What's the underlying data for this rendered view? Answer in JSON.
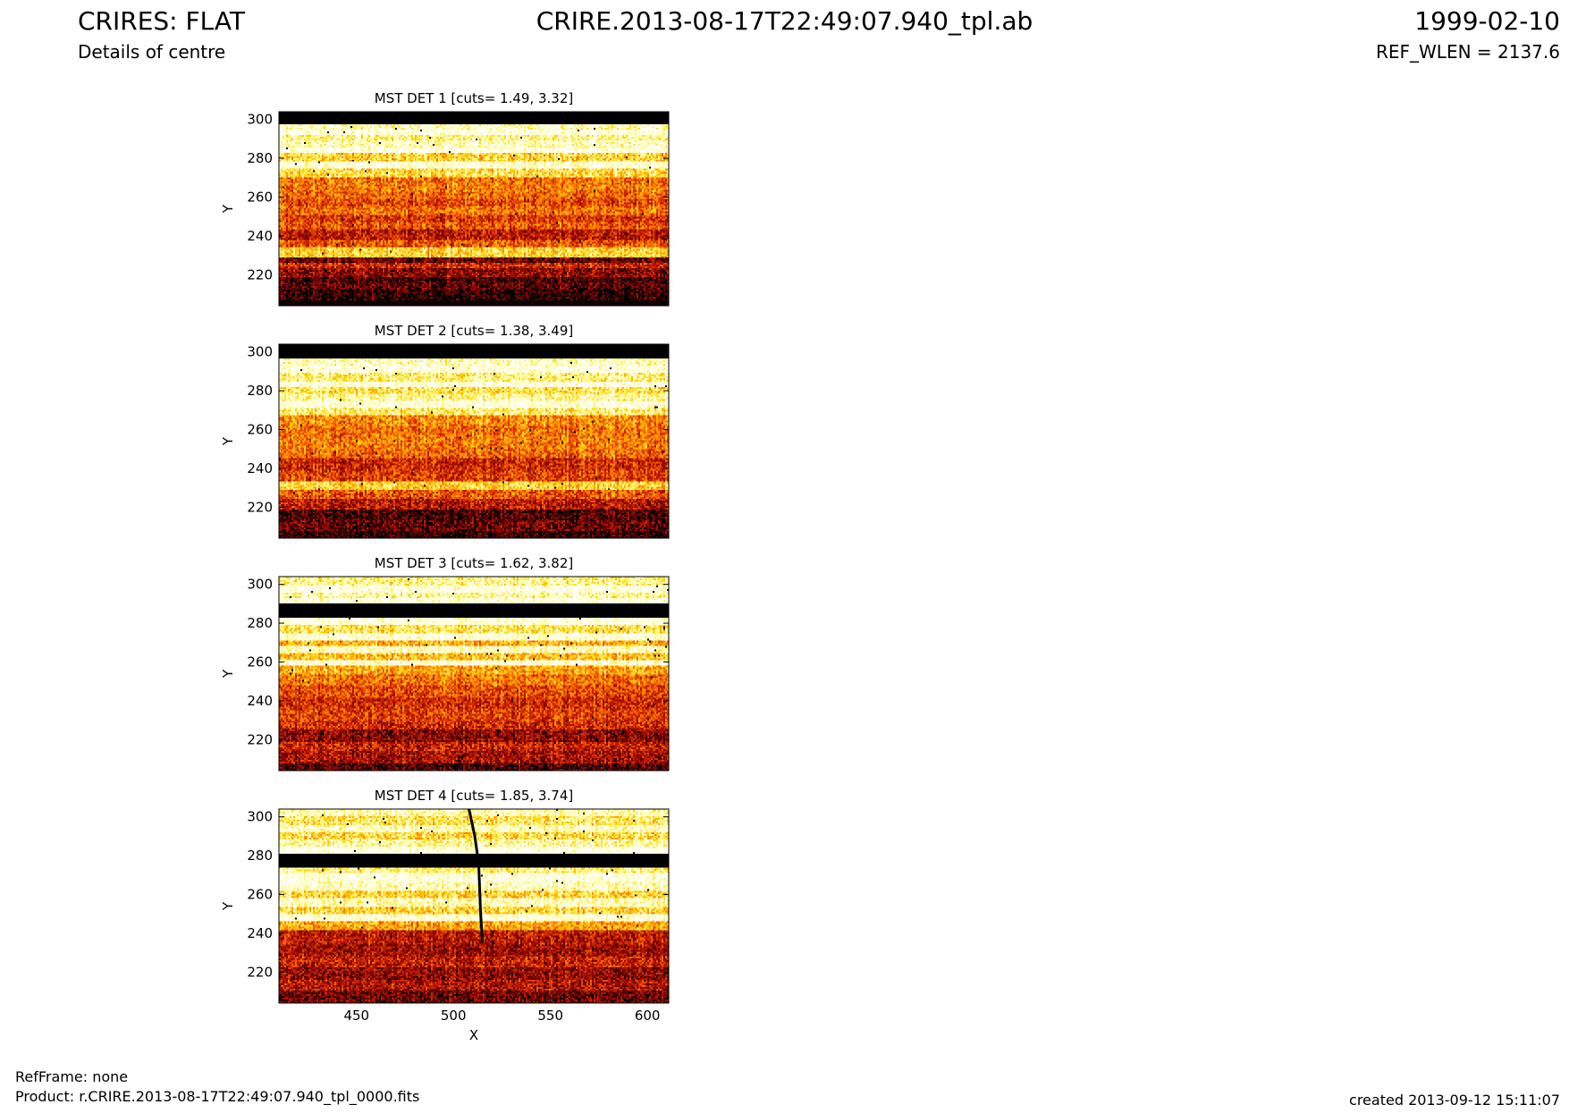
{
  "header": {
    "title": "CRIRES: FLAT",
    "subtitle": "Details of centre",
    "product": "CRIRE.2013-08-17T22:49:07.940_tpl.ab",
    "date": "1999-02-10",
    "ref_wlen": "REF_WLEN = 2137.6"
  },
  "footer": {
    "refframe": "RefFrame: none",
    "product": "Product: r.CRIRE.2013-08-17T22:49:07.940_tpl_0000.fits",
    "created": "created 2013-09-12 15:11:07"
  },
  "colors": {
    "colormap": [
      "#000000",
      "#7a0000",
      "#c81e00",
      "#ff6e00",
      "#ffd200",
      "#ffffa0",
      "#ffffff"
    ]
  },
  "chart_data": [
    {
      "type": "heatmap",
      "title": "MST DET 1 [cuts= 1.49, 3.32]",
      "cuts": [
        1.49,
        3.32
      ],
      "xlabel": "",
      "ylabel": "Y",
      "xlim": [
        410,
        611
      ],
      "ylim": [
        204,
        304
      ],
      "xticks": [],
      "yticks": [
        220,
        240,
        260,
        280,
        300
      ],
      "ytick_labels": [
        "220",
        "240",
        "260",
        "280",
        "300"
      ],
      "row_levels": [
        {
          "y0": 204,
          "y1": 207,
          "level": 0.02
        },
        {
          "y0": 207,
          "y1": 212,
          "level": 0.05
        },
        {
          "y0": 212,
          "y1": 216,
          "level": 0.12
        },
        {
          "y0": 216,
          "y1": 219,
          "level": 0.08
        },
        {
          "y0": 219,
          "y1": 223,
          "level": 0.22
        },
        {
          "y0": 223,
          "y1": 226,
          "level": 0.35
        },
        {
          "y0": 226,
          "y1": 229,
          "level": 0.15
        },
        {
          "y0": 229,
          "y1": 234,
          "level": 0.7
        },
        {
          "y0": 234,
          "y1": 238,
          "level": 0.45
        },
        {
          "y0": 238,
          "y1": 243,
          "level": 0.3
        },
        {
          "y0": 243,
          "y1": 247,
          "level": 0.45
        },
        {
          "y0": 247,
          "y1": 251,
          "level": 0.38
        },
        {
          "y0": 251,
          "y1": 255,
          "level": 0.5
        },
        {
          "y0": 255,
          "y1": 259,
          "level": 0.42
        },
        {
          "y0": 259,
          "y1": 263,
          "level": 0.48
        },
        {
          "y0": 263,
          "y1": 267,
          "level": 0.52
        },
        {
          "y0": 267,
          "y1": 270,
          "level": 0.5
        },
        {
          "y0": 270,
          "y1": 275,
          "level": 0.72
        },
        {
          "y0": 275,
          "y1": 278,
          "level": 0.95
        },
        {
          "y0": 278,
          "y1": 283,
          "level": 0.7
        },
        {
          "y0": 283,
          "y1": 286,
          "level": 0.98
        },
        {
          "y0": 286,
          "y1": 289,
          "level": 0.9
        },
        {
          "y0": 289,
          "y1": 292,
          "level": 0.82
        },
        {
          "y0": 292,
          "y1": 295,
          "level": 0.97
        },
        {
          "y0": 295,
          "y1": 298,
          "level": 0.9
        },
        {
          "y0": 298,
          "y1": 304,
          "level": 0.0
        }
      ]
    },
    {
      "type": "heatmap",
      "title": "MST DET 2 [cuts= 1.38, 3.49]",
      "cuts": [
        1.38,
        3.49
      ],
      "xlabel": "",
      "ylabel": "Y",
      "xlim": [
        410,
        611
      ],
      "ylim": [
        204,
        304
      ],
      "xticks": [],
      "yticks": [
        220,
        240,
        260,
        280,
        300
      ],
      "ytick_labels": [
        "220",
        "240",
        "260",
        "280",
        "300"
      ],
      "row_levels": [
        {
          "y0": 204,
          "y1": 208,
          "level": 0.05
        },
        {
          "y0": 208,
          "y1": 213,
          "level": 0.15
        },
        {
          "y0": 213,
          "y1": 219,
          "level": 0.1
        },
        {
          "y0": 219,
          "y1": 224,
          "level": 0.3
        },
        {
          "y0": 224,
          "y1": 229,
          "level": 0.45
        },
        {
          "y0": 229,
          "y1": 233,
          "level": 0.7
        },
        {
          "y0": 233,
          "y1": 239,
          "level": 0.4
        },
        {
          "y0": 239,
          "y1": 245,
          "level": 0.35
        },
        {
          "y0": 245,
          "y1": 250,
          "level": 0.48
        },
        {
          "y0": 250,
          "y1": 256,
          "level": 0.52
        },
        {
          "y0": 256,
          "y1": 262,
          "level": 0.5
        },
        {
          "y0": 262,
          "y1": 267,
          "level": 0.55
        },
        {
          "y0": 267,
          "y1": 271,
          "level": 0.78
        },
        {
          "y0": 271,
          "y1": 275,
          "level": 0.97
        },
        {
          "y0": 275,
          "y1": 278,
          "level": 0.85
        },
        {
          "y0": 278,
          "y1": 282,
          "level": 0.75
        },
        {
          "y0": 282,
          "y1": 285,
          "level": 0.97
        },
        {
          "y0": 285,
          "y1": 289,
          "level": 0.8
        },
        {
          "y0": 289,
          "y1": 293,
          "level": 0.97
        },
        {
          "y0": 293,
          "y1": 297,
          "level": 0.9
        },
        {
          "y0": 297,
          "y1": 304,
          "level": 0.0
        }
      ]
    },
    {
      "type": "heatmap",
      "title": "MST DET 3 [cuts= 1.62, 3.82]",
      "cuts": [
        1.62,
        3.82
      ],
      "xlabel": "",
      "ylabel": "Y",
      "xlim": [
        410,
        611
      ],
      "ylim": [
        204,
        304
      ],
      "xticks": [],
      "yticks": [
        220,
        240,
        260,
        280,
        300
      ],
      "ytick_labels": [
        "220",
        "240",
        "260",
        "280",
        "300"
      ],
      "row_levels": [
        {
          "y0": 204,
          "y1": 208,
          "level": 0.1
        },
        {
          "y0": 208,
          "y1": 214,
          "level": 0.25
        },
        {
          "y0": 214,
          "y1": 219,
          "level": 0.32
        },
        {
          "y0": 219,
          "y1": 225,
          "level": 0.2
        },
        {
          "y0": 225,
          "y1": 230,
          "level": 0.35
        },
        {
          "y0": 230,
          "y1": 236,
          "level": 0.4
        },
        {
          "y0": 236,
          "y1": 242,
          "level": 0.35
        },
        {
          "y0": 242,
          "y1": 248,
          "level": 0.42
        },
        {
          "y0": 248,
          "y1": 254,
          "level": 0.5
        },
        {
          "y0": 254,
          "y1": 258,
          "level": 0.6
        },
        {
          "y0": 258,
          "y1": 261,
          "level": 0.95
        },
        {
          "y0": 261,
          "y1": 265,
          "level": 0.65
        },
        {
          "y0": 265,
          "y1": 268,
          "level": 0.9
        },
        {
          "y0": 268,
          "y1": 271,
          "level": 0.62
        },
        {
          "y0": 271,
          "y1": 275,
          "level": 0.95
        },
        {
          "y0": 275,
          "y1": 279,
          "level": 0.75
        },
        {
          "y0": 279,
          "y1": 283,
          "level": 0.97
        },
        {
          "y0": 283,
          "y1": 290,
          "level": 0.0
        },
        {
          "y0": 290,
          "y1": 293,
          "level": 0.97
        },
        {
          "y0": 293,
          "y1": 296,
          "level": 0.85
        },
        {
          "y0": 296,
          "y1": 299,
          "level": 0.97
        },
        {
          "y0": 299,
          "y1": 304,
          "level": 0.82
        }
      ]
    },
    {
      "type": "heatmap",
      "title": "MST DET 4 [cuts= 1.85, 3.74]",
      "cuts": [
        1.85,
        3.74
      ],
      "xlabel": "X",
      "ylabel": "Y",
      "xlim": [
        410,
        611
      ],
      "ylim": [
        204,
        304
      ],
      "xticks": [
        450,
        500,
        550,
        600
      ],
      "xtick_labels": [
        "450",
        "500",
        "550",
        "600"
      ],
      "yticks": [
        220,
        240,
        260,
        280,
        300
      ],
      "ytick_labels": [
        "220",
        "240",
        "260",
        "280",
        "300"
      ],
      "row_levels": [
        {
          "y0": 204,
          "y1": 210,
          "level": 0.15
        },
        {
          "y0": 210,
          "y1": 216,
          "level": 0.28
        },
        {
          "y0": 216,
          "y1": 222,
          "level": 0.22
        },
        {
          "y0": 222,
          "y1": 228,
          "level": 0.32
        },
        {
          "y0": 228,
          "y1": 234,
          "level": 0.25
        },
        {
          "y0": 234,
          "y1": 242,
          "level": 0.3
        },
        {
          "y0": 242,
          "y1": 246,
          "level": 0.6
        },
        {
          "y0": 246,
          "y1": 250,
          "level": 0.95
        },
        {
          "y0": 250,
          "y1": 254,
          "level": 0.7
        },
        {
          "y0": 254,
          "y1": 258,
          "level": 0.88
        },
        {
          "y0": 258,
          "y1": 262,
          "level": 0.7
        },
        {
          "y0": 262,
          "y1": 266,
          "level": 0.9
        },
        {
          "y0": 266,
          "y1": 271,
          "level": 0.97
        },
        {
          "y0": 271,
          "y1": 274,
          "level": 0.8
        },
        {
          "y0": 274,
          "y1": 281,
          "level": 0.0
        },
        {
          "y0": 281,
          "y1": 285,
          "level": 0.98
        },
        {
          "y0": 285,
          "y1": 288,
          "level": 0.85
        },
        {
          "y0": 288,
          "y1": 292,
          "level": 0.72
        },
        {
          "y0": 292,
          "y1": 296,
          "level": 0.9
        },
        {
          "y0": 296,
          "y1": 300,
          "level": 0.75
        },
        {
          "y0": 300,
          "y1": 304,
          "level": 0.88
        }
      ],
      "defect_line": [
        [
          508,
          304
        ],
        [
          511,
          290
        ],
        [
          513,
          276
        ],
        [
          514,
          250
        ],
        [
          515,
          235
        ]
      ]
    }
  ]
}
